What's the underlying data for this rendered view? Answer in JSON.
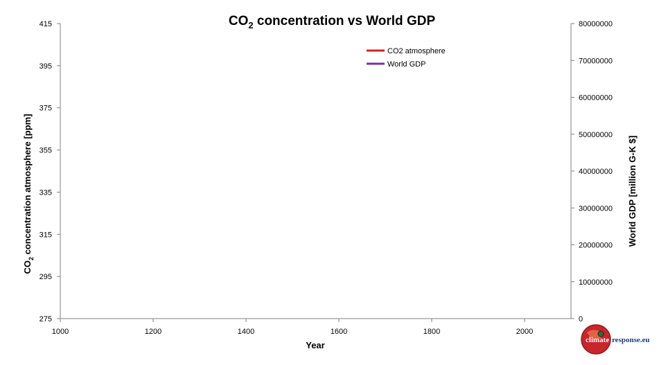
{
  "chart_data": {
    "type": "line",
    "title": "CO₂ concentration vs World GDP",
    "xlabel": "Year",
    "ylabel": "CO₂ concentration atmosphere [ppm]",
    "y2label": "World GDP [million G-K $]",
    "xlim": [
      1000,
      2100
    ],
    "ylim": [
      275,
      415
    ],
    "y2lim": [
      0,
      80000000
    ],
    "x_ticks": [
      "1000",
      "1200",
      "1400",
      "1600",
      "1800",
      "2000"
    ],
    "y_ticks": [
      "275",
      "295",
      "315",
      "335",
      "355",
      "375",
      "395",
      "415"
    ],
    "y2_ticks": [
      "0",
      "10000000",
      "20000000",
      "30000000",
      "40000000",
      "50000000",
      "60000000",
      "70000000",
      "80000000"
    ],
    "grid": false,
    "legend_position": "top-right",
    "series": [
      {
        "name": "CO2 atmosphere",
        "color": "#d42020",
        "x": [],
        "values": []
      },
      {
        "name": "World GDP",
        "color": "#7b2fa0",
        "x": [],
        "values": []
      }
    ]
  },
  "logo": {
    "text_left": "climate",
    "text_right": "response.eu",
    "globe_color": "#c8262b",
    "text_color": "#1f3d7a"
  }
}
